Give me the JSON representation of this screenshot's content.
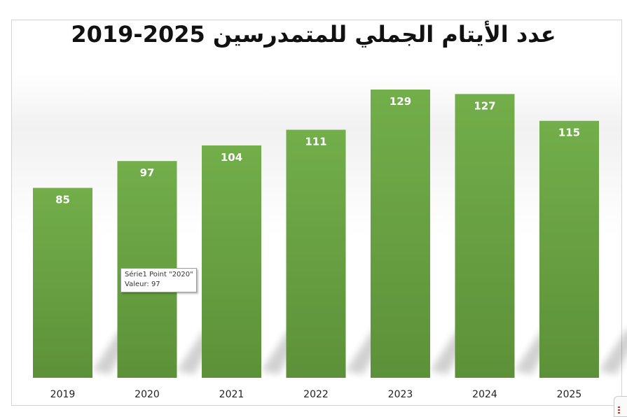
{
  "chart_data": {
    "type": "bar",
    "title": "عدد الأيتام الجملي للمتمدرسين 2025-2019",
    "categories": [
      "2019",
      "2020",
      "2021",
      "2022",
      "2023",
      "2024",
      "2025"
    ],
    "series": [
      {
        "values": [
          85,
          97,
          104,
          111,
          129,
          127,
          115
        ]
      }
    ],
    "xlabel": "",
    "ylabel": "",
    "ylim": [
      0,
      130
    ],
    "grid": false,
    "legend": "none",
    "data_labels": true,
    "colors": {
      "bar_top": "#72ae4a",
      "bar_bottom": "#5d9139",
      "label": "#ffffff",
      "tick": "#222222"
    }
  },
  "tooltip": {
    "line1": "Série1 Point \"2020\"",
    "line2": "Valeur: 97"
  },
  "icons": {
    "corner": "options-icon"
  }
}
